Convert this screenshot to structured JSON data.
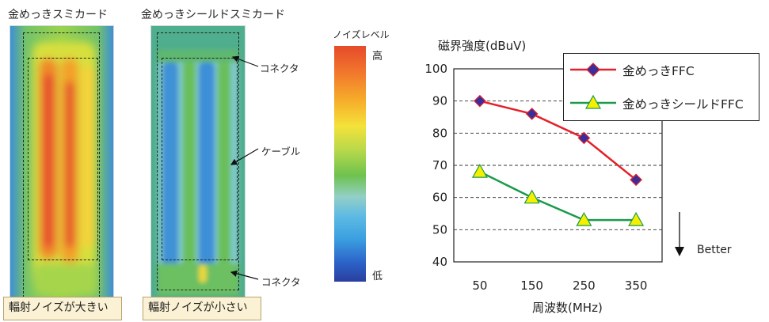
{
  "panels": {
    "left_title": "金めっきスミカード",
    "right_title": "金めっきシールドスミカード",
    "left_caption": "輻射ノイズが大きい",
    "right_caption": "輻射ノイズが小さい",
    "annotations": {
      "connector_top": "コネクタ",
      "cable": "ケーブル",
      "connector_bottom": "コネクタ"
    },
    "scale": {
      "title": "ノイズレベル",
      "high": "高",
      "low": "低"
    }
  },
  "better_label": "Better",
  "colors": {
    "series_gold": "#e4202a",
    "series_shield": "#1a9a4a",
    "marker_gold": "#3a2f9a",
    "marker_shield": "#f4f000"
  },
  "chart_data": {
    "type": "line",
    "ylabel": "磁界強度(dBuV)",
    "xlabel": "周波数(MHz)",
    "categories": [
      "50",
      "150",
      "250",
      "350"
    ],
    "yticks": [
      "40",
      "50",
      "60",
      "70",
      "80",
      "90",
      "100"
    ],
    "ylim": [
      40,
      100
    ],
    "grid": true,
    "legend_position": "top-right",
    "series": [
      {
        "name": "金めっきFFC",
        "marker": "diamond",
        "values": [
          90,
          86,
          78.5,
          65.5
        ]
      },
      {
        "name": "金めっきシールドFFC",
        "marker": "triangle",
        "values": [
          68,
          60,
          53,
          53
        ]
      }
    ]
  }
}
